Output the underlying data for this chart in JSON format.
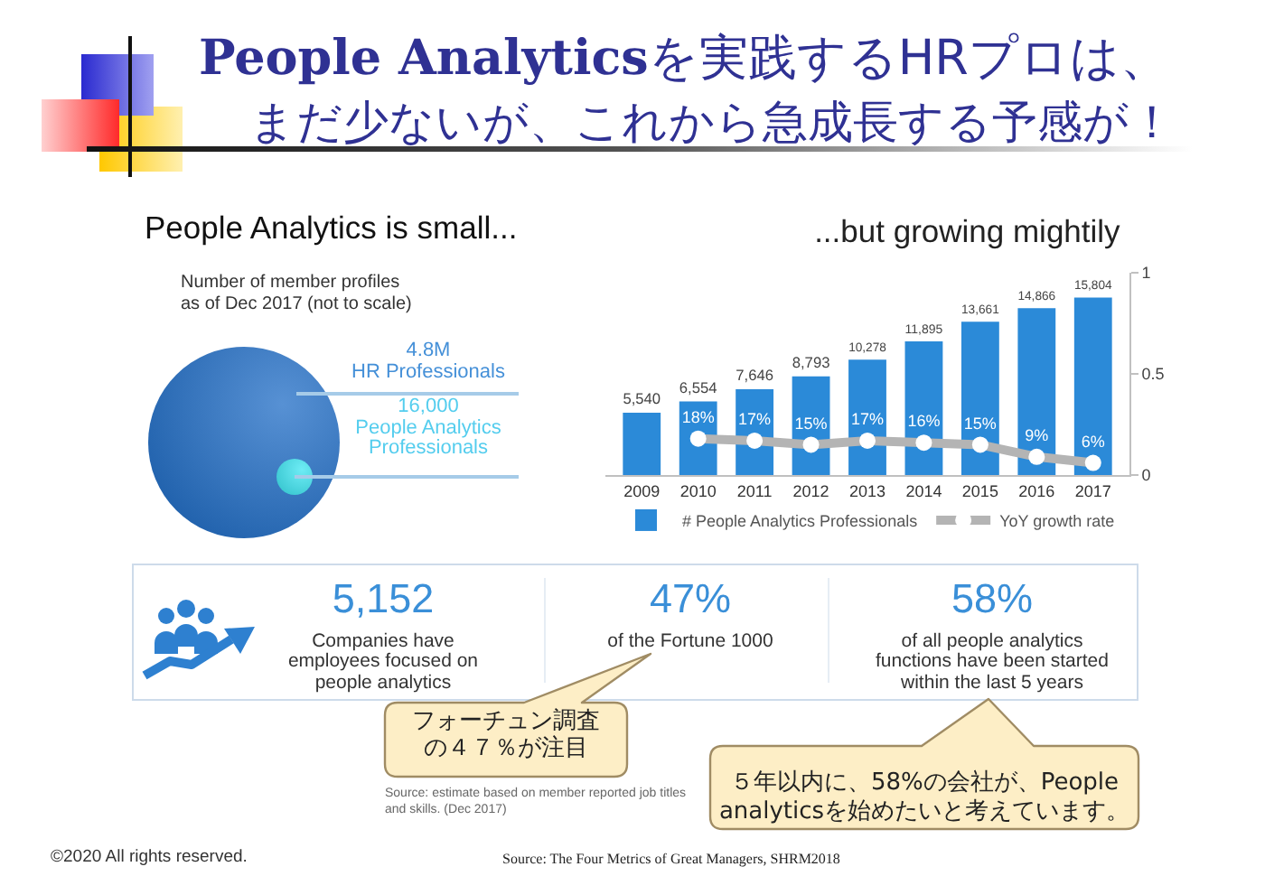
{
  "chart_data": [
    {
      "type": "other",
      "title": "People Analyticsを実践するHRプロは、",
      "subtitle": "まだ少ないが、これから急成長する予感が！",
      "annotations": [
        "©2020 All rights reserved.",
        "Source: The Four Metrics of Great Managers, SHRM2018"
      ]
    },
    {
      "type": "other",
      "title": "People Analytics is small...",
      "subtitle": "Number of member profiles\nas of Dec 2017 (not to scale)",
      "categories": [
        "HR Professionals",
        "People Analytics Professionals"
      ],
      "value_labels": [
        "4.8M",
        "16,000"
      ],
      "colors": [
        "#1f6cc6",
        "#3ee6f2"
      ]
    },
    {
      "type": "bar",
      "title": "...but growing mightily",
      "categories": [
        "2009",
        "2010",
        "2011",
        "2012",
        "2013",
        "2014",
        "2015",
        "2016",
        "2017"
      ],
      "series": [
        {
          "name": "# People Analytics Professionals",
          "color": "#2b8ad8",
          "values": [
            5540,
            6554,
            7646,
            8793,
            10278,
            11895,
            13661,
            14866,
            15804
          ],
          "value_labels": [
            "5,540",
            "6,554",
            "7,646",
            "8,793",
            "10,278",
            "11,895",
            "13,661",
            "14,866",
            "15,804"
          ]
        },
        {
          "name": "YoY growth rate",
          "type": "line",
          "axis": "y2",
          "color": "#b4b4b4",
          "values": [
            null,
            0.18,
            0.17,
            0.15,
            0.17,
            0.16,
            0.15,
            0.09,
            0.06
          ],
          "value_labels": [
            null,
            "18%",
            "17%",
            "15%",
            "17%",
            "16%",
            "15%",
            "9%",
            "6%"
          ]
        }
      ],
      "y2lim": [
        0,
        1
      ],
      "y2ticks": [
        0,
        0.5,
        1
      ],
      "legend": "bottom",
      "marker": "circle"
    },
    {
      "type": "other",
      "categories": [
        "Companies have employees focused on people analytics",
        "of the Fortune 1000",
        "of all people analytics functions have been started within the last 5 years"
      ],
      "value_labels": [
        "5,152",
        "47%",
        "58%"
      ],
      "color": "#3a8fd8",
      "annotations": [
        "フォーチュン調査の４７％が注目",
        "５年以内に、58%の会社が、People\nanalyticsを始めたいと考えています。",
        "Source: estimate based on member reported job titles and skills. (Dec 2017)"
      ]
    }
  ]
}
